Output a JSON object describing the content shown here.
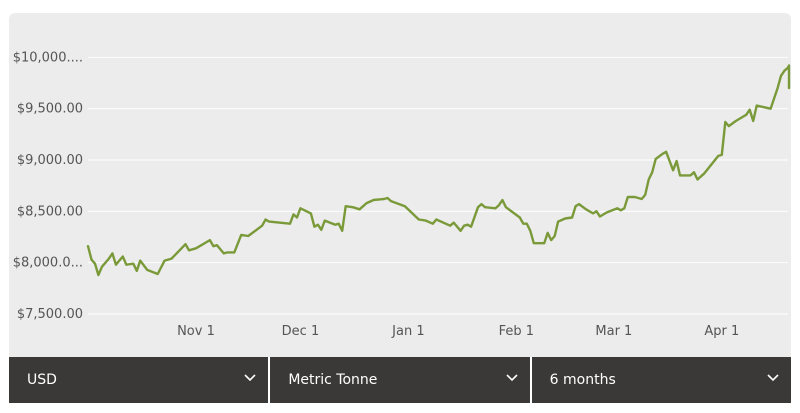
{
  "chart_data": {
    "type": "line",
    "y_ticks": [
      {
        "value": 7500,
        "label": "$7,500.00"
      },
      {
        "value": 8000,
        "label": "$8,000.0..."
      },
      {
        "value": 8500,
        "label": "$8,500.00"
      },
      {
        "value": 9000,
        "label": "$9,000.00"
      },
      {
        "value": 9500,
        "label": "$9,500.00"
      },
      {
        "value": 10000,
        "label": "$10,000...."
      }
    ],
    "x_ticks": [
      {
        "value": 31,
        "label": "Nov 1"
      },
      {
        "value": 61,
        "label": "Dec 1"
      },
      {
        "value": 92,
        "label": "Jan 1"
      },
      {
        "value": 123,
        "label": "Feb 1"
      },
      {
        "value": 151,
        "label": "Mar 1"
      },
      {
        "value": 182,
        "label": "Apr 1"
      }
    ],
    "xlim": [
      0,
      201
    ],
    "ylim": [
      7500,
      10500
    ],
    "grid": true,
    "line_color": "#7a9a3a",
    "series": [
      {
        "values": [
          [
            0,
            8160
          ],
          [
            1,
            8030
          ],
          [
            2,
            7990
          ],
          [
            3,
            7880
          ],
          [
            4,
            7960
          ],
          [
            6,
            8040
          ],
          [
            7,
            8090
          ],
          [
            8,
            7980
          ],
          [
            10,
            8060
          ],
          [
            11,
            7980
          ],
          [
            13,
            7990
          ],
          [
            14,
            7920
          ],
          [
            15,
            8020
          ],
          [
            17,
            7930
          ],
          [
            20,
            7890
          ],
          [
            22,
            8020
          ],
          [
            24,
            8040
          ],
          [
            28,
            8180
          ],
          [
            29,
            8120
          ],
          [
            31,
            8140
          ],
          [
            35,
            8220
          ],
          [
            36,
            8160
          ],
          [
            37,
            8170
          ],
          [
            39,
            8090
          ],
          [
            40,
            8100
          ],
          [
            42,
            8100
          ],
          [
            44,
            8270
          ],
          [
            46,
            8260
          ],
          [
            50,
            8360
          ],
          [
            51,
            8420
          ],
          [
            52,
            8400
          ],
          [
            58,
            8380
          ],
          [
            59,
            8470
          ],
          [
            60,
            8440
          ],
          [
            61,
            8530
          ],
          [
            64,
            8480
          ],
          [
            65,
            8350
          ],
          [
            66,
            8370
          ],
          [
            67,
            8320
          ],
          [
            68,
            8410
          ],
          [
            71,
            8370
          ],
          [
            72,
            8380
          ],
          [
            73,
            8310
          ],
          [
            74,
            8550
          ],
          [
            76,
            8540
          ],
          [
            78,
            8520
          ],
          [
            79,
            8550
          ],
          [
            80,
            8580
          ],
          [
            82,
            8610
          ],
          [
            85,
            8620
          ],
          [
            86,
            8630
          ],
          [
            87,
            8600
          ],
          [
            91,
            8550
          ],
          [
            95,
            8420
          ],
          [
            97,
            8410
          ],
          [
            99,
            8380
          ],
          [
            100,
            8420
          ],
          [
            104,
            8360
          ],
          [
            105,
            8390
          ],
          [
            107,
            8310
          ],
          [
            108,
            8360
          ],
          [
            109,
            8370
          ],
          [
            110,
            8350
          ],
          [
            112,
            8540
          ],
          [
            113,
            8570
          ],
          [
            114,
            8540
          ],
          [
            117,
            8530
          ],
          [
            118,
            8560
          ],
          [
            119,
            8610
          ],
          [
            120,
            8540
          ],
          [
            124,
            8440
          ],
          [
            125,
            8380
          ],
          [
            126,
            8380
          ],
          [
            127,
            8310
          ],
          [
            128,
            8190
          ],
          [
            131,
            8190
          ],
          [
            132,
            8290
          ],
          [
            133,
            8220
          ],
          [
            134,
            8260
          ],
          [
            135,
            8400
          ],
          [
            137,
            8430
          ],
          [
            139,
            8440
          ],
          [
            140,
            8550
          ],
          [
            141,
            8570
          ],
          [
            143,
            8520
          ],
          [
            145,
            8480
          ],
          [
            146,
            8500
          ],
          [
            147,
            8450
          ],
          [
            149,
            8490
          ],
          [
            152,
            8530
          ],
          [
            153,
            8510
          ],
          [
            154,
            8530
          ],
          [
            155,
            8640
          ],
          [
            157,
            8640
          ],
          [
            159,
            8620
          ],
          [
            160,
            8660
          ],
          [
            161,
            8810
          ],
          [
            162,
            8880
          ],
          [
            163,
            9010
          ],
          [
            165,
            9060
          ],
          [
            166,
            9080
          ],
          [
            167,
            8990
          ],
          [
            168,
            8900
          ],
          [
            169,
            8990
          ],
          [
            170,
            8850
          ],
          [
            172,
            8850
          ],
          [
            173,
            8850
          ],
          [
            174,
            8880
          ],
          [
            175,
            8810
          ],
          [
            177,
            8870
          ],
          [
            181,
            9040
          ],
          [
            182,
            9050
          ],
          [
            183,
            9370
          ],
          [
            184,
            9330
          ],
          [
            186,
            9380
          ],
          [
            188,
            9420
          ],
          [
            189,
            9440
          ],
          [
            190,
            9490
          ],
          [
            191,
            9380
          ],
          [
            192,
            9530
          ],
          [
            196,
            9500
          ],
          [
            198,
            9700
          ],
          [
            199,
            9820
          ],
          [
            200,
            9870
          ],
          [
            201,
            9900
          ],
          [
            202,
            9920
          ],
          [
            203,
            9700
          ],
          [
            204,
            9800
          ],
          [
            205,
            9900
          ]
        ]
      }
    ]
  },
  "controls": {
    "currency": "USD",
    "unit": "Metric Tonne",
    "period": "6 months"
  }
}
